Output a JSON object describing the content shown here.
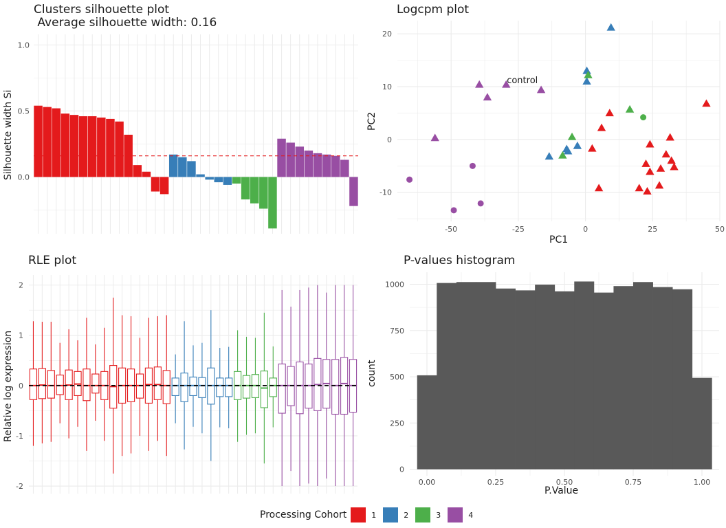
{
  "palette": {
    "cohort_colors": {
      "1": "#E41A1C",
      "2": "#377EB8",
      "3": "#4DAF4A",
      "4": "#984EA3"
    },
    "hist_fill": "#595959",
    "grid": "#ebebeb",
    "ref_line": "#E41A1C"
  },
  "legend": {
    "title": "Processing Cohort",
    "items": [
      {
        "label": "1",
        "color": "#E41A1C"
      },
      {
        "label": "2",
        "color": "#377EB8"
      },
      {
        "label": "3",
        "color": "#4DAF4A"
      },
      {
        "label": "4",
        "color": "#984EA3"
      }
    ],
    "position": "bottom"
  },
  "chart_data": [
    {
      "id": "silhouette",
      "type": "bar",
      "title": "Clusters silhouette plot",
      "subtitle": " Average silhouette width: 0.16",
      "xlabel": "",
      "ylabel": "Silhouette width Si",
      "ylim": [
        -0.43,
        1.08
      ],
      "yticks": [
        0.0,
        0.5,
        1.0
      ],
      "ytick_labels": [
        "0.0",
        "0.5",
        "1.0"
      ],
      "reference_line": {
        "value": 0.16,
        "style": "dashed"
      },
      "grid": true,
      "bars": [
        {
          "cohort": "1",
          "value": 0.54
        },
        {
          "cohort": "1",
          "value": 0.53
        },
        {
          "cohort": "1",
          "value": 0.52
        },
        {
          "cohort": "1",
          "value": 0.48
        },
        {
          "cohort": "1",
          "value": 0.47
        },
        {
          "cohort": "1",
          "value": 0.46
        },
        {
          "cohort": "1",
          "value": 0.46
        },
        {
          "cohort": "1",
          "value": 0.45
        },
        {
          "cohort": "1",
          "value": 0.44
        },
        {
          "cohort": "1",
          "value": 0.42
        },
        {
          "cohort": "1",
          "value": 0.32
        },
        {
          "cohort": "1",
          "value": 0.09
        },
        {
          "cohort": "1",
          "value": 0.04
        },
        {
          "cohort": "1",
          "value": -0.11
        },
        {
          "cohort": "1",
          "value": -0.13
        },
        {
          "cohort": "2",
          "value": 0.17
        },
        {
          "cohort": "2",
          "value": 0.15
        },
        {
          "cohort": "2",
          "value": 0.12
        },
        {
          "cohort": "2",
          "value": 0.02
        },
        {
          "cohort": "2",
          "value": -0.02
        },
        {
          "cohort": "2",
          "value": -0.04
        },
        {
          "cohort": "2",
          "value": -0.06
        },
        {
          "cohort": "3",
          "value": -0.05
        },
        {
          "cohort": "3",
          "value": -0.17
        },
        {
          "cohort": "3",
          "value": -0.2
        },
        {
          "cohort": "3",
          "value": -0.24
        },
        {
          "cohort": "3",
          "value": -0.39
        },
        {
          "cohort": "4",
          "value": 0.29
        },
        {
          "cohort": "4",
          "value": 0.26
        },
        {
          "cohort": "4",
          "value": 0.23
        },
        {
          "cohort": "4",
          "value": 0.2
        },
        {
          "cohort": "4",
          "value": 0.18
        },
        {
          "cohort": "4",
          "value": 0.17
        },
        {
          "cohort": "4",
          "value": 0.16
        },
        {
          "cohort": "4",
          "value": 0.13
        },
        {
          "cohort": "4",
          "value": -0.22
        }
      ]
    },
    {
      "id": "logcpm",
      "type": "scatter",
      "title": "Logcpm plot",
      "xlabel": "PC1",
      "ylabel": "PC2",
      "xlim": [
        -70,
        50
      ],
      "ylim": [
        -15.5,
        22.5
      ],
      "xticks": [
        -50,
        -25,
        0,
        25,
        50
      ],
      "xtick_labels": [
        "-50",
        "-25",
        "0",
        "25",
        "50"
      ],
      "yticks": [
        -10,
        0,
        10,
        20
      ],
      "ytick_labels": [
        "-10",
        "0",
        "10",
        "20"
      ],
      "grid": true,
      "annotation": {
        "text": "control",
        "x": -23.5,
        "y": 11.3
      },
      "points": [
        {
          "x": 9.5,
          "y": 21.2,
          "cohort": "2",
          "shape": "triangle"
        },
        {
          "x": 0.5,
          "y": 13.0,
          "cohort": "2",
          "shape": "triangle"
        },
        {
          "x": 0.5,
          "y": 11.0,
          "cohort": "2",
          "shape": "triangle"
        },
        {
          "x": -3.0,
          "y": -1.2,
          "cohort": "2",
          "shape": "triangle"
        },
        {
          "x": -7.0,
          "y": -1.8,
          "cohort": "2",
          "shape": "triangle"
        },
        {
          "x": -6.5,
          "y": -2.2,
          "cohort": "2",
          "shape": "triangle"
        },
        {
          "x": -13.5,
          "y": -3.2,
          "cohort": "2",
          "shape": "triangle"
        },
        {
          "x": 1.0,
          "y": 12.2,
          "cohort": "3",
          "shape": "triangle"
        },
        {
          "x": 16.5,
          "y": 5.7,
          "cohort": "3",
          "shape": "triangle"
        },
        {
          "x": 21.5,
          "y": 4.2,
          "cohort": "3",
          "shape": "circle"
        },
        {
          "x": -5.0,
          "y": 0.5,
          "cohort": "3",
          "shape": "triangle"
        },
        {
          "x": -8.5,
          "y": -3.0,
          "cohort": "3",
          "shape": "triangle"
        },
        {
          "x": 45.0,
          "y": 6.8,
          "cohort": "1",
          "shape": "triangle"
        },
        {
          "x": 9.0,
          "y": 5.0,
          "cohort": "1",
          "shape": "triangle"
        },
        {
          "x": 6.0,
          "y": 2.2,
          "cohort": "1",
          "shape": "triangle"
        },
        {
          "x": 31.5,
          "y": 0.4,
          "cohort": "1",
          "shape": "triangle"
        },
        {
          "x": 24.0,
          "y": -0.9,
          "cohort": "1",
          "shape": "triangle"
        },
        {
          "x": 2.5,
          "y": -1.7,
          "cohort": "1",
          "shape": "triangle"
        },
        {
          "x": 30.0,
          "y": -2.8,
          "cohort": "1",
          "shape": "triangle"
        },
        {
          "x": 32.0,
          "y": -4.0,
          "cohort": "1",
          "shape": "triangle"
        },
        {
          "x": 22.5,
          "y": -4.6,
          "cohort": "1",
          "shape": "triangle"
        },
        {
          "x": 33.0,
          "y": -5.2,
          "cohort": "1",
          "shape": "triangle"
        },
        {
          "x": 28.0,
          "y": -5.5,
          "cohort": "1",
          "shape": "triangle"
        },
        {
          "x": 24.0,
          "y": -6.1,
          "cohort": "1",
          "shape": "triangle"
        },
        {
          "x": 27.5,
          "y": -8.7,
          "cohort": "1",
          "shape": "triangle"
        },
        {
          "x": 5.0,
          "y": -9.2,
          "cohort": "1",
          "shape": "triangle"
        },
        {
          "x": 20.0,
          "y": -9.2,
          "cohort": "1",
          "shape": "triangle"
        },
        {
          "x": 23.0,
          "y": -9.8,
          "cohort": "1",
          "shape": "triangle"
        },
        {
          "x": -29.5,
          "y": 10.4,
          "cohort": "4",
          "shape": "triangle"
        },
        {
          "x": -39.5,
          "y": 10.4,
          "cohort": "4",
          "shape": "triangle"
        },
        {
          "x": -16.5,
          "y": 9.4,
          "cohort": "4",
          "shape": "triangle"
        },
        {
          "x": -36.5,
          "y": 8.0,
          "cohort": "4",
          "shape": "triangle"
        },
        {
          "x": -56.0,
          "y": 0.3,
          "cohort": "4",
          "shape": "triangle"
        },
        {
          "x": -42.0,
          "y": -5.0,
          "cohort": "4",
          "shape": "circle"
        },
        {
          "x": -65.5,
          "y": -7.6,
          "cohort": "4",
          "shape": "circle"
        },
        {
          "x": -39.0,
          "y": -12.1,
          "cohort": "4",
          "shape": "circle"
        },
        {
          "x": -49.0,
          "y": -13.4,
          "cohort": "4",
          "shape": "circle"
        }
      ]
    },
    {
      "id": "rle",
      "type": "box",
      "title": "RLE plot",
      "xlabel": "",
      "ylabel": "Relative log expression",
      "ylim": [
        -2.15,
        2.2
      ],
      "yticks": [
        -2,
        -1,
        0,
        1,
        2
      ],
      "ytick_labels": [
        "-2",
        "-1",
        "0",
        "1",
        "2"
      ],
      "reference_line": {
        "value": 0,
        "style": "dashed"
      },
      "grid": true,
      "boxes": [
        {
          "cohort": "1",
          "q1": -0.28,
          "median": 0.0,
          "q3": 0.33,
          "lo": -1.2,
          "hi": 1.28
        },
        {
          "cohort": "1",
          "q1": -0.26,
          "median": 0.01,
          "q3": 0.34,
          "lo": -1.15,
          "hi": 1.27
        },
        {
          "cohort": "1",
          "q1": -0.25,
          "median": 0.0,
          "q3": 0.3,
          "lo": -1.12,
          "hi": 1.27
        },
        {
          "cohort": "1",
          "q1": -0.18,
          "median": 0.0,
          "q3": 0.21,
          "lo": -0.75,
          "hi": 0.85
        },
        {
          "cohort": "1",
          "q1": -0.28,
          "median": 0.01,
          "q3": 0.31,
          "lo": -1.05,
          "hi": 1.12
        },
        {
          "cohort": "1",
          "q1": -0.2,
          "median": 0.03,
          "q3": 0.28,
          "lo": -0.82,
          "hi": 0.9
        },
        {
          "cohort": "1",
          "q1": -0.3,
          "median": 0.0,
          "q3": 0.33,
          "lo": -1.3,
          "hi": 1.35
        },
        {
          "cohort": "1",
          "q1": -0.15,
          "median": 0.0,
          "q3": 0.23,
          "lo": -0.7,
          "hi": 0.82
        },
        {
          "cohort": "1",
          "q1": -0.28,
          "median": 0.0,
          "q3": 0.28,
          "lo": -1.1,
          "hi": 1.15
        },
        {
          "cohort": "1",
          "q1": -0.45,
          "median": -0.02,
          "q3": 0.4,
          "lo": -1.75,
          "hi": 1.75
        },
        {
          "cohort": "1",
          "q1": -0.35,
          "median": 0.0,
          "q3": 0.35,
          "lo": -1.4,
          "hi": 1.4
        },
        {
          "cohort": "1",
          "q1": -0.32,
          "median": 0.0,
          "q3": 0.33,
          "lo": -1.35,
          "hi": 1.38
        },
        {
          "cohort": "1",
          "q1": -0.25,
          "median": 0.0,
          "q3": 0.23,
          "lo": -1.0,
          "hi": 0.95
        },
        {
          "cohort": "1",
          "q1": -0.35,
          "median": 0.02,
          "q3": 0.35,
          "lo": -1.3,
          "hi": 1.35
        },
        {
          "cohort": "1",
          "q1": -0.28,
          "median": 0.02,
          "q3": 0.37,
          "lo": -1.1,
          "hi": 1.38
        },
        {
          "cohort": "1",
          "q1": -0.36,
          "median": 0.0,
          "q3": 0.3,
          "lo": -1.4,
          "hi": 1.4
        },
        {
          "cohort": "2",
          "q1": -0.2,
          "median": 0.0,
          "q3": 0.15,
          "lo": -0.75,
          "hi": 0.62
        },
        {
          "cohort": "2",
          "q1": -0.32,
          "median": 0.0,
          "q3": 0.25,
          "lo": -1.27,
          "hi": 1.28
        },
        {
          "cohort": "2",
          "q1": -0.2,
          "median": 0.0,
          "q3": 0.17,
          "lo": -0.82,
          "hi": 0.8
        },
        {
          "cohort": "2",
          "q1": -0.24,
          "median": 0.0,
          "q3": 0.16,
          "lo": -0.95,
          "hi": 0.85
        },
        {
          "cohort": "2",
          "q1": -0.37,
          "median": 0.0,
          "q3": 0.35,
          "lo": -1.5,
          "hi": 1.5
        },
        {
          "cohort": "2",
          "q1": -0.22,
          "median": 0.0,
          "q3": 0.15,
          "lo": -0.83,
          "hi": 0.75
        },
        {
          "cohort": "2",
          "q1": -0.22,
          "median": 0.0,
          "q3": 0.15,
          "lo": -0.85,
          "hi": 0.77
        },
        {
          "cohort": "3",
          "q1": -0.28,
          "median": 0.0,
          "q3": 0.28,
          "lo": -1.12,
          "hi": 1.1
        },
        {
          "cohort": "3",
          "q1": -0.25,
          "median": 0.0,
          "q3": 0.2,
          "lo": -0.98,
          "hi": 0.97
        },
        {
          "cohort": "3",
          "q1": -0.24,
          "median": 0.0,
          "q3": 0.22,
          "lo": -0.95,
          "hi": 0.95
        },
        {
          "cohort": "3",
          "q1": -0.44,
          "median": -0.05,
          "q3": 0.29,
          "lo": -1.55,
          "hi": 1.45
        },
        {
          "cohort": "3",
          "q1": -0.22,
          "median": 0.0,
          "q3": 0.15,
          "lo": -0.83,
          "hi": 0.78
        },
        {
          "cohort": "4",
          "q1": -0.55,
          "median": 0.0,
          "q3": 0.43,
          "lo": -2.0,
          "hi": 1.9
        },
        {
          "cohort": "4",
          "q1": -0.4,
          "median": 0.0,
          "q3": 0.38,
          "lo": -1.7,
          "hi": 1.57
        },
        {
          "cohort": "4",
          "q1": -0.56,
          "median": 0.0,
          "q3": 0.47,
          "lo": -2.0,
          "hi": 1.9
        },
        {
          "cohort": "4",
          "q1": -0.45,
          "median": 0.0,
          "q3": 0.43,
          "lo": -1.95,
          "hi": 1.95
        },
        {
          "cohort": "4",
          "q1": -0.5,
          "median": 0.02,
          "q3": 0.54,
          "lo": -2.0,
          "hi": 2.0
        },
        {
          "cohort": "4",
          "q1": -0.45,
          "median": 0.04,
          "q3": 0.52,
          "lo": -1.85,
          "hi": 1.85
        },
        {
          "cohort": "4",
          "q1": -0.57,
          "median": 0.0,
          "q3": 0.52,
          "lo": -2.0,
          "hi": 2.0
        },
        {
          "cohort": "4",
          "q1": -0.57,
          "median": 0.04,
          "q3": 0.56,
          "lo": -2.0,
          "hi": 2.0
        },
        {
          "cohort": "4",
          "q1": -0.53,
          "median": 0.0,
          "q3": 0.52,
          "lo": -2.0,
          "hi": 2.0
        }
      ]
    },
    {
      "id": "pvalues",
      "type": "bar",
      "title": "P-values histogram",
      "xlabel": "P.Value",
      "ylabel": "count",
      "xlim": [
        -0.0625,
        1.0625
      ],
      "ylim": [
        -35,
        1065
      ],
      "xticks": [
        0.0,
        0.25,
        0.5,
        0.75,
        1.0
      ],
      "xtick_labels": [
        "0.00",
        "0.25",
        "0.50",
        "0.75",
        "1.00"
      ],
      "yticks": [
        0,
        250,
        500,
        750,
        1000
      ],
      "ytick_labels": [
        "0",
        "250",
        "500",
        "750",
        "1000"
      ],
      "grid": true,
      "bin_width": 0.0714,
      "bins": [
        {
          "center": 0.0,
          "count": 508
        },
        {
          "center": 0.0714,
          "count": 1007
        },
        {
          "center": 0.1429,
          "count": 1012
        },
        {
          "center": 0.2143,
          "count": 1012
        },
        {
          "center": 0.2857,
          "count": 977
        },
        {
          "center": 0.3571,
          "count": 967
        },
        {
          "center": 0.4286,
          "count": 998
        },
        {
          "center": 0.5,
          "count": 962
        },
        {
          "center": 0.5714,
          "count": 1015
        },
        {
          "center": 0.6429,
          "count": 955
        },
        {
          "center": 0.7143,
          "count": 990
        },
        {
          "center": 0.7857,
          "count": 1012
        },
        {
          "center": 0.8571,
          "count": 985
        },
        {
          "center": 0.9286,
          "count": 973
        },
        {
          "center": 1.0,
          "count": 494
        }
      ]
    }
  ]
}
